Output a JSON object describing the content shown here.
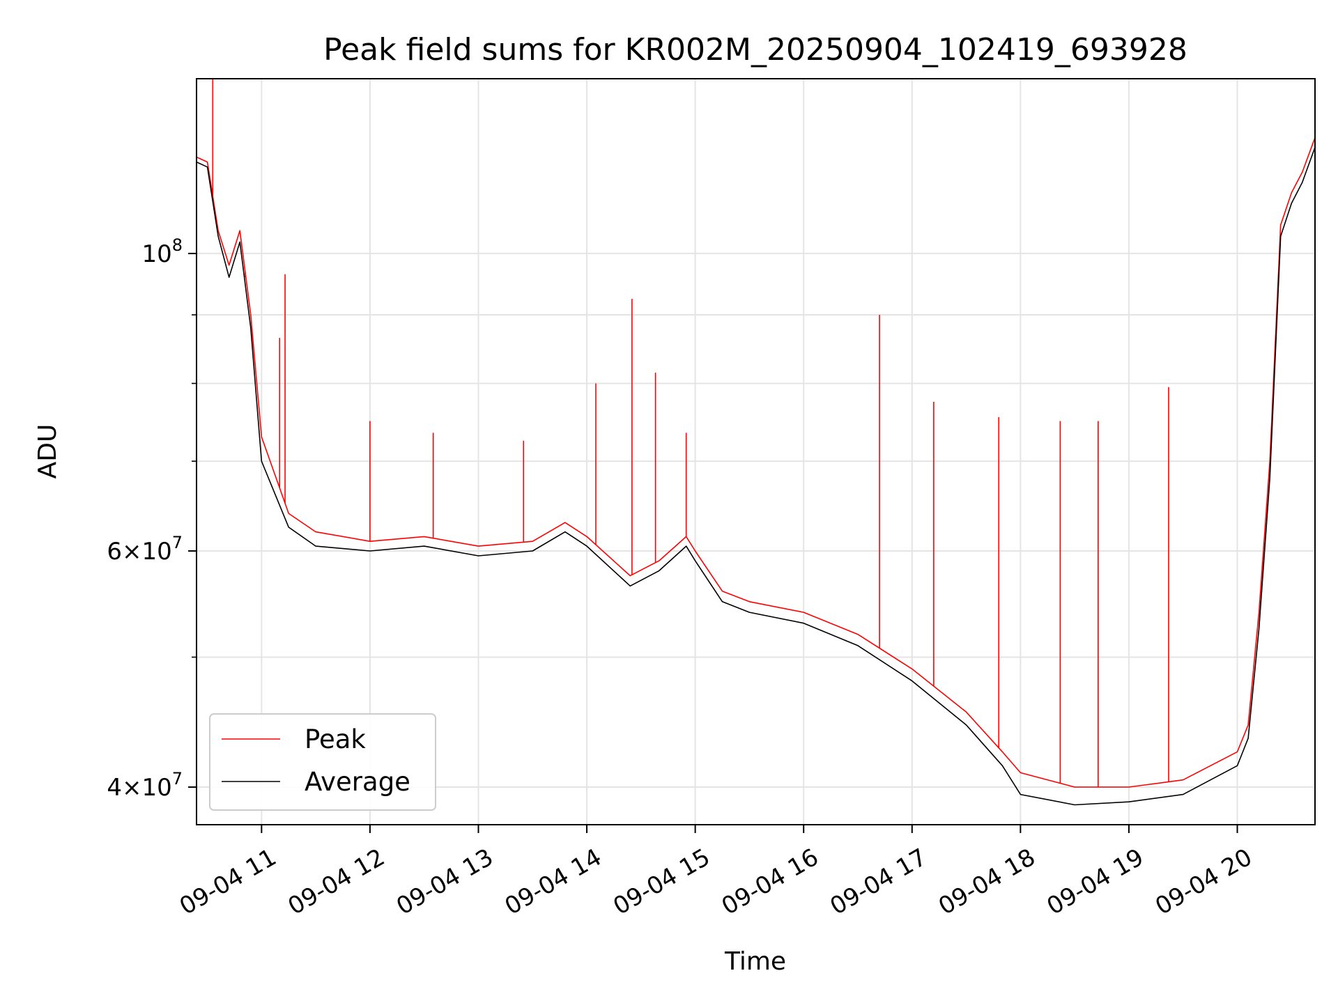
{
  "chart_data": {
    "type": "line",
    "title": "Peak field sums for KR002M_20250904_102419_693928",
    "xlabel": "Time",
    "ylabel": "ADU",
    "yscale": "log",
    "xlim": [
      "2025-09-04T10:24",
      "2025-09-04T20:43"
    ],
    "ylim": [
      37500000,
      135000000
    ],
    "grid": true,
    "legend_position": "lower-left",
    "x_tick_labels": [
      "09-04 11",
      "09-04 12",
      "09-04 13",
      "09-04 14",
      "09-04 15",
      "09-04 16",
      "09-04 17",
      "09-04 18",
      "09-04 19",
      "09-04 20"
    ],
    "x_ticks": [
      "2025-09-04T11:00",
      "2025-09-04T12:00",
      "2025-09-04T13:00",
      "2025-09-04T14:00",
      "2025-09-04T15:00",
      "2025-09-04T16:00",
      "2025-09-04T17:00",
      "2025-09-04T18:00",
      "2025-09-04T19:00",
      "2025-09-04T20:00"
    ],
    "y_ticks": [
      {
        "value": 100000000,
        "base": "10",
        "exp": "8"
      },
      {
        "value": 60000000,
        "mant": "6",
        "base": "10",
        "exp": "7"
      },
      {
        "value": 40000000,
        "mant": "4",
        "base": "10",
        "exp": "7"
      }
    ],
    "y_minor_ticks": [
      50000000,
      70000000,
      80000000,
      90000000
    ],
    "x": [
      "2025-09-04T10:24",
      "2025-09-04T10:30",
      "2025-09-04T10:36",
      "2025-09-04T10:42",
      "2025-09-04T10:48",
      "2025-09-04T10:54",
      "2025-09-04T11:00",
      "2025-09-04T11:15",
      "2025-09-04T11:30",
      "2025-09-04T12:00",
      "2025-09-04T12:30",
      "2025-09-04T13:00",
      "2025-09-04T13:30",
      "2025-09-04T13:48",
      "2025-09-04T14:00",
      "2025-09-04T14:24",
      "2025-09-04T14:40",
      "2025-09-04T14:55",
      "2025-09-04T15:00",
      "2025-09-04T15:15",
      "2025-09-04T15:30",
      "2025-09-04T16:00",
      "2025-09-04T16:30",
      "2025-09-04T17:00",
      "2025-09-04T17:30",
      "2025-09-04T17:50",
      "2025-09-04T18:00",
      "2025-09-04T18:30",
      "2025-09-04T19:00",
      "2025-09-04T19:30",
      "2025-09-04T20:00",
      "2025-09-04T20:06",
      "2025-09-04T20:12",
      "2025-09-04T20:18",
      "2025-09-04T20:24",
      "2025-09-04T20:30",
      "2025-09-04T20:36",
      "2025-09-04T20:43"
    ],
    "series": [
      {
        "name": "Peak",
        "color": "#ff0000",
        "values": [
          118000000,
          117000000,
          104000000,
          98000000,
          104000000,
          90000000,
          73000000,
          64000000,
          62000000,
          61000000,
          61500000,
          60500000,
          61000000,
          63000000,
          61500000,
          57500000,
          59000000,
          61500000,
          60000000,
          56000000,
          55000000,
          54000000,
          52000000,
          49000000,
          45500000,
          42500000,
          41000000,
          40000000,
          40000000,
          40500000,
          42500000,
          44500000,
          54000000,
          70000000,
          105000000,
          111000000,
          115000000,
          122000000
        ]
      },
      {
        "name": "Average",
        "color": "#000000",
        "values": [
          117000000,
          116000000,
          103000000,
          96000000,
          102000000,
          88000000,
          70000000,
          62500000,
          60500000,
          60000000,
          60500000,
          59500000,
          60000000,
          62000000,
          60500000,
          56500000,
          58000000,
          60500000,
          59000000,
          55000000,
          54000000,
          53000000,
          51000000,
          48000000,
          44500000,
          41500000,
          39500000,
          38800000,
          39000000,
          39500000,
          41500000,
          43500000,
          52500000,
          68000000,
          103000000,
          109000000,
          113000000,
          120000000
        ]
      }
    ],
    "spikes": {
      "series": "Peak",
      "points": [
        {
          "x": "2025-09-04T10:33",
          "y": 135000000
        },
        {
          "x": "2025-09-04T10:51",
          "y": 96000000
        },
        {
          "x": "2025-09-04T11:10",
          "y": 86500000
        },
        {
          "x": "2025-09-04T11:13",
          "y": 96500000
        },
        {
          "x": "2025-09-04T12:00",
          "y": 75000000
        },
        {
          "x": "2025-09-04T12:35",
          "y": 73500000
        },
        {
          "x": "2025-09-04T13:25",
          "y": 72500000
        },
        {
          "x": "2025-09-04T14:05",
          "y": 80000000
        },
        {
          "x": "2025-09-04T14:25",
          "y": 92500000
        },
        {
          "x": "2025-09-04T14:38",
          "y": 81500000
        },
        {
          "x": "2025-09-04T14:55",
          "y": 73500000
        },
        {
          "x": "2025-09-04T16:42",
          "y": 90000000
        },
        {
          "x": "2025-09-04T17:12",
          "y": 77500000
        },
        {
          "x": "2025-09-04T17:48",
          "y": 75500000
        },
        {
          "x": "2025-09-04T18:22",
          "y": 75000000
        },
        {
          "x": "2025-09-04T18:43",
          "y": 75000000
        },
        {
          "x": "2025-09-04T19:22",
          "y": 79500000
        }
      ]
    }
  }
}
